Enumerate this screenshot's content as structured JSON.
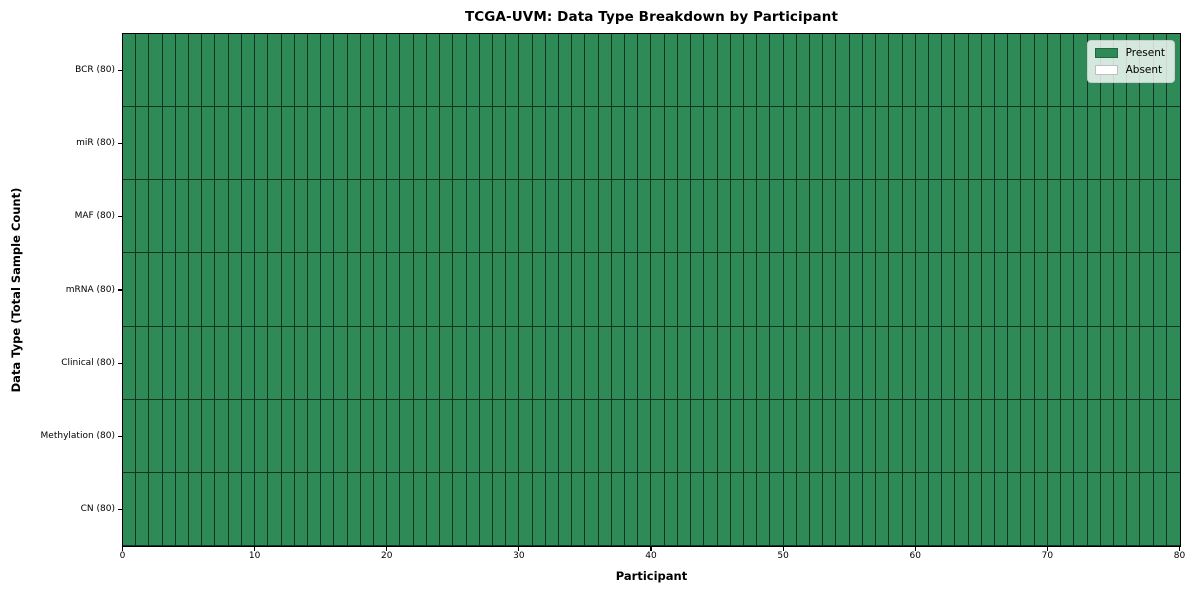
{
  "chart_data": {
    "type": "heatmap",
    "title": "TCGA-UVM: Data Type Breakdown by Participant",
    "xlabel": "Participant",
    "ylabel": "Data Type (Total Sample Count)",
    "x_range": [
      0,
      80
    ],
    "x_ticks": [
      0,
      10,
      20,
      30,
      40,
      50,
      60,
      70,
      80
    ],
    "n_participants": 80,
    "rows": [
      {
        "label": "BCR (80)",
        "data_type": "BCR",
        "total_samples": 80,
        "present_count": 80,
        "absent_count": 0
      },
      {
        "label": "miR (80)",
        "data_type": "miR",
        "total_samples": 80,
        "present_count": 80,
        "absent_count": 0
      },
      {
        "label": "MAF (80)",
        "data_type": "MAF",
        "total_samples": 80,
        "present_count": 80,
        "absent_count": 0
      },
      {
        "label": "mRNA (80)",
        "data_type": "mRNA",
        "total_samples": 80,
        "present_count": 80,
        "absent_count": 0
      },
      {
        "label": "Clinical (80)",
        "data_type": "Clinical",
        "total_samples": 80,
        "present_count": 80,
        "absent_count": 0
      },
      {
        "label": "Methylation (80)",
        "data_type": "Methylation",
        "total_samples": 80,
        "present_count": 80,
        "absent_count": 0
      },
      {
        "label": "CN (80)",
        "data_type": "CN",
        "total_samples": 80,
        "present_count": 80,
        "absent_count": 0
      }
    ],
    "legend": {
      "position": "upper-right",
      "entries": [
        {
          "label": "Present",
          "state": "present",
          "color": "#2e8b57"
        },
        {
          "label": "Absent",
          "state": "absent",
          "color": "#ffffff"
        }
      ]
    },
    "colors": {
      "present": "#2e8b57",
      "absent": "#ffffff",
      "cell_border": "rgba(0,0,0,0.62)",
      "spine": "#000000",
      "background": "#ffffff",
      "legend_background": "rgba(255,255,255,0.8)",
      "legend_border": "#cccccc"
    },
    "layout_hints": {
      "grid": "per-cell black edges",
      "all_cells_state": "present"
    }
  }
}
